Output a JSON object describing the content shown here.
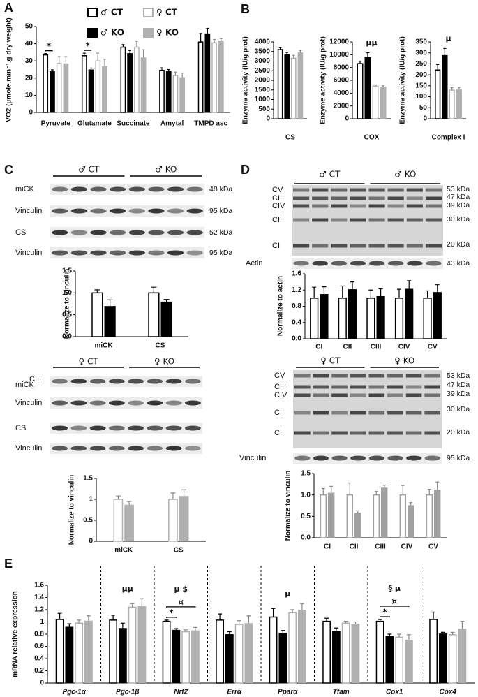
{
  "chart_data": [
    {
      "type": "bar",
      "panel": "A",
      "ylabel": "VO2 (µmole.min⁻¹.g dry weight)",
      "categories": [
        "Pyruvate",
        "Glutamate",
        "Succinate",
        "Amytal",
        "TMPD asc"
      ],
      "ylim": [
        0,
        50
      ],
      "yticks": [
        0,
        10,
        20,
        30,
        40,
        50
      ],
      "series": [
        {
          "name": "♂ CT",
          "color": "#000000",
          "hollow": true,
          "values": [
            33.5,
            33,
            38,
            24.5,
            41
          ],
          "errors": [
            0.8,
            1.5,
            1.5,
            1.5,
            5
          ]
        },
        {
          "name": "♂ KO",
          "color": "#000000",
          "values": [
            24,
            25,
            34.5,
            24,
            46
          ],
          "errors": [
            0.8,
            0.8,
            1.5,
            1,
            3
          ]
        },
        {
          "name": "♀ CT",
          "color": "#b0b0b0",
          "hollow": true,
          "values": [
            28.5,
            30,
            38,
            21.5,
            40.5
          ],
          "errors": [
            4,
            4.5,
            3.5,
            2,
            2
          ]
        },
        {
          "name": "♀ KO",
          "color": "#b0b0b0",
          "values": [
            28.5,
            27,
            32,
            20.5,
            41.5
          ],
          "errors": [
            4,
            4,
            4.5,
            2.5,
            1.5
          ]
        }
      ],
      "annotations": [
        [
          {
            "text": "*",
            "between": [
              0,
              1
            ]
          }
        ],
        [
          {
            "text": "*",
            "between": [
              0,
              1
            ]
          }
        ],
        [],
        [],
        []
      ]
    },
    {
      "type": "bar",
      "panel": "B",
      "ylabel": "Enzyme activity (IU/g prot)",
      "categories": [
        "CS"
      ],
      "ylim": [
        0,
        4000
      ],
      "yticks": [
        0,
        500,
        1000,
        1500,
        2000,
        2500,
        3000,
        3500,
        4000
      ],
      "series": [
        {
          "color": "#000000",
          "hollow": true,
          "values": [
            3600
          ],
          "errors": [
            100
          ]
        },
        {
          "color": "#000000",
          "values": [
            3350
          ],
          "errors": [
            100
          ]
        },
        {
          "color": "#b0b0b0",
          "hollow": true,
          "values": [
            3150
          ],
          "errors": [
            150
          ]
        },
        {
          "color": "#b0b0b0",
          "values": [
            3450
          ],
          "errors": [
            100
          ]
        }
      ]
    },
    {
      "type": "bar",
      "ylabel": "Enzyme activity (IU/g prot)",
      "categories": [
        "COX"
      ],
      "ylim": [
        0,
        12000
      ],
      "yticks": [
        0,
        2000,
        4000,
        6000,
        8000,
        10000,
        12000
      ],
      "series": [
        {
          "color": "#000000",
          "hollow": true,
          "values": [
            8600
          ],
          "errors": [
            400
          ]
        },
        {
          "color": "#000000",
          "values": [
            9600
          ],
          "errors": [
            700
          ]
        },
        {
          "color": "#b0b0b0",
          "hollow": true,
          "values": [
            5100
          ],
          "errors": [
            200
          ]
        },
        {
          "color": "#b0b0b0",
          "values": [
            5000
          ],
          "errors": [
            150
          ]
        }
      ],
      "annotations": [
        [
          {
            "text": "μμ"
          }
        ]
      ]
    },
    {
      "type": "bar",
      "ylabel": "Enzyme activity (IU/g prot)",
      "categories": [
        "Complex I"
      ],
      "ylim": [
        0,
        350
      ],
      "yticks": [
        0,
        50,
        100,
        150,
        200,
        250,
        300,
        350
      ],
      "series": [
        {
          "color": "#000000",
          "hollow": true,
          "values": [
            222
          ],
          "errors": [
            25
          ]
        },
        {
          "color": "#000000",
          "values": [
            290
          ],
          "errors": [
            30
          ]
        },
        {
          "color": "#b0b0b0",
          "hollow": true,
          "values": [
            130
          ],
          "errors": [
            12
          ]
        },
        {
          "color": "#b0b0b0",
          "values": [
            133
          ],
          "errors": [
            10
          ]
        }
      ],
      "annotations": [
        [
          {
            "text": "μ"
          }
        ]
      ]
    },
    {
      "type": "bar",
      "panel": "C",
      "ylabel": "Normalize to vinculin",
      "categories": [
        "miCK",
        "CS"
      ],
      "ylim": [
        0,
        1.5
      ],
      "yticks": [
        {
          "value": 0,
          "label": "0.0"
        },
        0.5,
        {
          "value": 1,
          "label": "1.0"
        },
        1.5
      ],
      "series": [
        {
          "color": "#000000",
          "hollow": true,
          "values": [
            1.0,
            1.0
          ],
          "errors": [
            0.07,
            0.13
          ]
        },
        {
          "color": "#000000",
          "values": [
            0.7,
            0.8
          ],
          "errors": [
            0.14,
            0.05
          ]
        }
      ]
    },
    {
      "type": "bar",
      "ylabel": "Normalize to vinculin",
      "categories": [
        "miCK",
        "CS"
      ],
      "ylim": [
        0,
        1.5
      ],
      "yticks": [
        0,
        0.5,
        1,
        1.5
      ],
      "series": [
        {
          "color": "#b0b0b0",
          "hollow": true,
          "values": [
            1.0,
            1.0
          ],
          "errors": [
            0.08,
            0.15
          ]
        },
        {
          "color": "#b0b0b0",
          "values": [
            0.87,
            1.08
          ],
          "errors": [
            0.08,
            0.15
          ]
        }
      ]
    },
    {
      "type": "bar",
      "panel": "D",
      "ylabel": "Normalize to actin",
      "categories": [
        "CI",
        "CII",
        "CIII",
        "CIV",
        "CV"
      ],
      "ylim": [
        0,
        1.6
      ],
      "yticks": [
        {
          "value": 0,
          "label": "0.0"
        },
        0.4,
        0.8,
        1.2,
        1.6
      ],
      "series": [
        {
          "color": "#000000",
          "hollow": true,
          "values": [
            1,
            1,
            1,
            1,
            1
          ],
          "errors": [
            0.27,
            0.3,
            0.2,
            0.22,
            0.18
          ]
        },
        {
          "color": "#000000",
          "values": [
            1.1,
            1.22,
            1.05,
            1.23,
            1.15
          ],
          "errors": [
            0.18,
            0.18,
            0.18,
            0.2,
            0.18
          ]
        }
      ]
    },
    {
      "type": "bar",
      "ylabel": "Normalize to vinculin",
      "categories": [
        "CI",
        "CII",
        "CIII",
        "CIV",
        "CV"
      ],
      "ylim": [
        0,
        1.5
      ],
      "yticks": [
        {
          "value": 0,
          "label": "0.0"
        },
        0.5,
        {
          "value": 1,
          "label": "1.0"
        },
        1.5
      ],
      "series": [
        {
          "color": "#a0a0a0",
          "hollow": true,
          "values": [
            1,
            1,
            1,
            1,
            1
          ],
          "errors": [
            0.15,
            0.28,
            0.08,
            0.22,
            0.13
          ]
        },
        {
          "color": "#a0a0a0",
          "values": [
            1.05,
            0.58,
            1.17,
            0.76,
            1.12
          ],
          "errors": [
            0.15,
            0.05,
            0.06,
            0.06,
            0.18
          ]
        }
      ]
    },
    {
      "type": "bar",
      "panel": "E",
      "ylabel": "mRNA relative expression",
      "italic_categories": true,
      "categories": [
        "Pgc-1α",
        "Pgc-1β",
        "Nrf2",
        "Errα",
        "Pparα",
        "Tfam",
        "Cox1",
        "Cox4"
      ],
      "ylim": [
        0,
        1.6
      ],
      "yticks": [
        0,
        0.2,
        0.4,
        0.6,
        0.8,
        1,
        1.2,
        1.4,
        1.6
      ],
      "series": [
        {
          "color": "#000000",
          "hollow": true,
          "values": [
            1.04,
            1.03,
            1.01,
            1.03,
            1.08,
            1.01,
            1.01,
            1.04
          ],
          "errors": [
            0.1,
            0.08,
            0.02,
            0.1,
            0.14,
            0.05,
            0.03,
            0.12
          ]
        },
        {
          "color": "#000000",
          "values": [
            0.92,
            0.9,
            0.87,
            0.8,
            0.82,
            0.85,
            0.77,
            0.81
          ],
          "errors": [
            0.05,
            0.08,
            0.02,
            0.04,
            0.04,
            0.05,
            0.03,
            0.02
          ]
        },
        {
          "color": "#b0b0b0",
          "hollow": true,
          "values": [
            0.98,
            1.24,
            0.84,
            0.96,
            1.15,
            0.98,
            0.75,
            0.79
          ],
          "errors": [
            0.05,
            0.06,
            0.03,
            0.06,
            0.05,
            0.03,
            0.05,
            0.04
          ]
        },
        {
          "color": "#b0b0b0",
          "values": [
            1.02,
            1.26,
            0.86,
            0.98,
            1.2,
            0.97,
            0.71,
            0.89
          ],
          "errors": [
            0.08,
            0.12,
            0.05,
            0.12,
            0.1,
            0.03,
            0.08,
            0.12
          ]
        }
      ],
      "annotations": [
        [],
        [
          {
            "text": "μμ"
          }
        ],
        [
          {
            "text": "μ $"
          },
          {
            "text": "¤",
            "between": [
              0,
              3
            ]
          },
          {
            "text": "*",
            "between": [
              0,
              1
            ]
          }
        ],
        [],
        [
          {
            "text": "μ"
          }
        ],
        [],
        [
          {
            "text": "§ μ"
          },
          {
            "text": "¤",
            "between": [
              0,
              3
            ]
          },
          {
            "text": "*",
            "between": [
              0,
              1
            ]
          }
        ],
        []
      ]
    }
  ],
  "blots": [
    {
      "groups": [
        "♂ CT",
        "♂ KO"
      ],
      "strips": [
        {
          "label": "miCK",
          "kda": "48 kDa"
        },
        {
          "label": "Vinculin",
          "kda": "95 kDa"
        },
        {
          "label": "CS",
          "kda": "52 kDa"
        },
        {
          "label": "Vinculin",
          "kda": "95 kDa"
        }
      ]
    },
    {
      "groups": [
        "♀ CT",
        "♀ KO"
      ],
      "strips": [
        {
          "label": "miCK",
          "label2": "CIII"
        },
        {
          "label": "Vinculin"
        },
        {
          "label": "CS"
        },
        {
          "label": "Vinculin"
        }
      ]
    },
    {
      "groups": [
        "♂ CT",
        "♂ KO"
      ],
      "bands": [
        {
          "label": "CV",
          "kda": "53 kDa"
        },
        {
          "label": "CIII",
          "kda": "47 kDa"
        },
        {
          "label": "CIV",
          "kda": "39 kDa"
        },
        {
          "label": "CII",
          "kda": "30 kDa"
        },
        {
          "label": "CI",
          "kda": "20 kDa"
        }
      ],
      "strips": [
        {
          "label": "Actin",
          "kda": "43 kDa"
        }
      ]
    },
    {
      "groups": [
        "♀ CT",
        "♀ KO"
      ],
      "bands": [
        {
          "label": "CV",
          "kda": "53 kDa"
        },
        {
          "label": "CIII",
          "kda": "47 kDa"
        },
        {
          "label": "CIV",
          "kda": "39 kDa"
        },
        {
          "label": "CII",
          "kda": "30 kDa"
        },
        {
          "label": "CI",
          "kda": "20 kDa"
        }
      ],
      "strips": [
        {
          "label": "Vinculin",
          "kda": "95 kDa"
        }
      ]
    }
  ]
}
